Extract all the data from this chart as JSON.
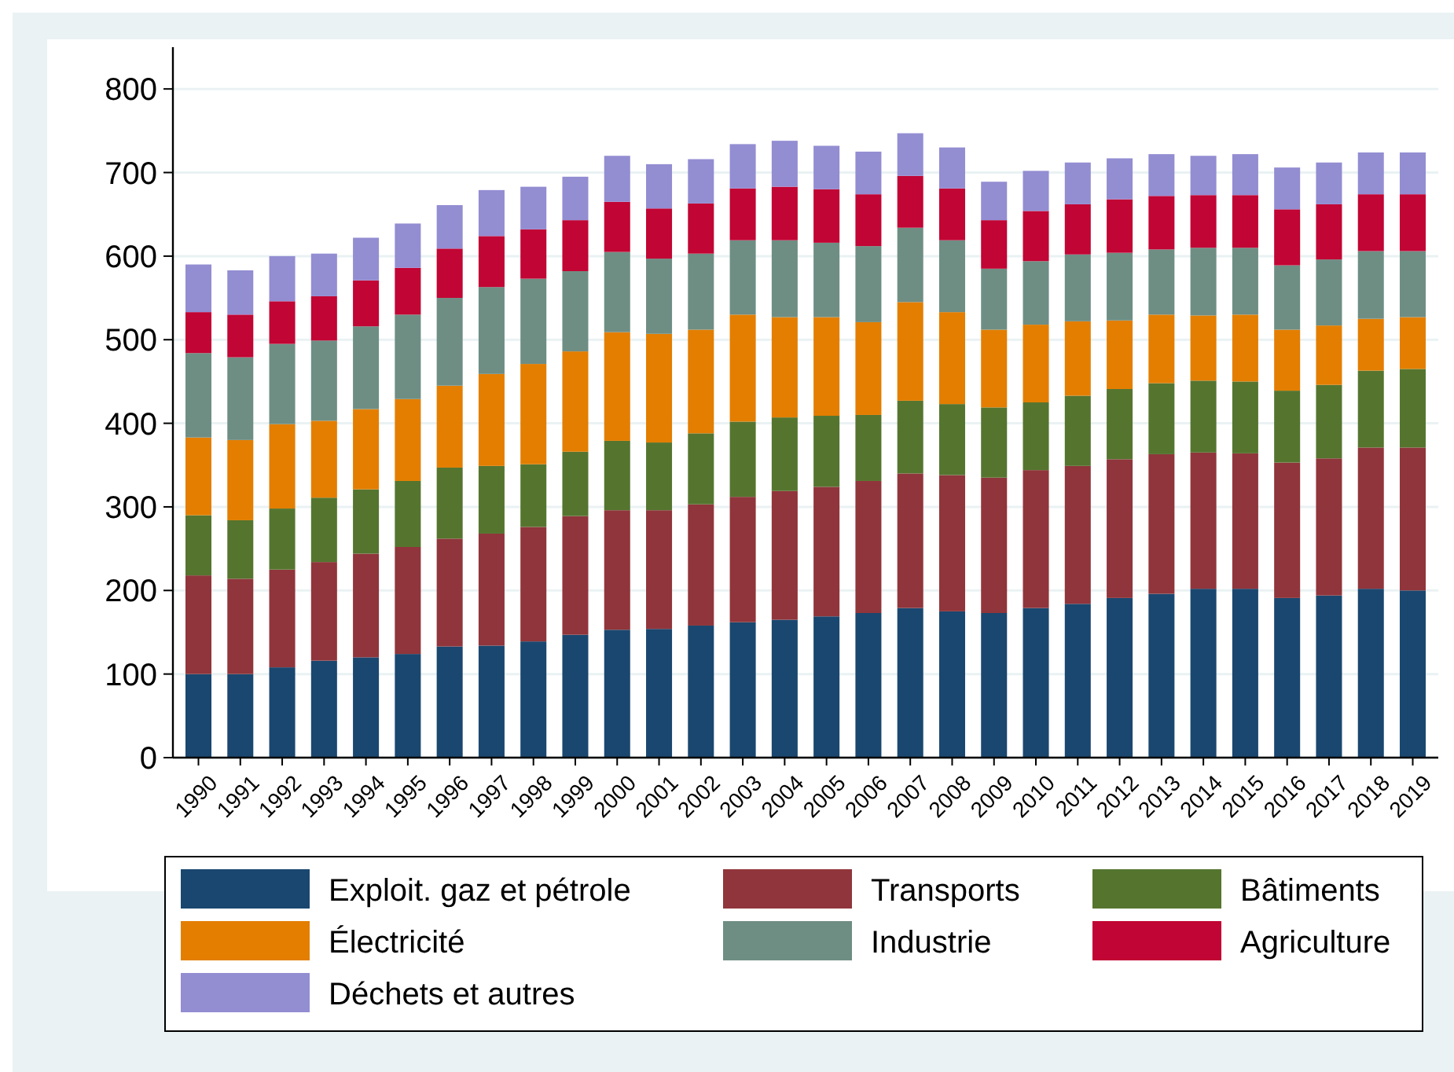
{
  "chart_data": {
    "type": "bar",
    "stacked": true,
    "grid": "y",
    "legend": "bottom",
    "categories": [
      "1990",
      "1991",
      "1992",
      "1993",
      "1994",
      "1995",
      "1996",
      "1997",
      "1998",
      "1999",
      "2000",
      "2001",
      "2002",
      "2003",
      "2004",
      "2005",
      "2006",
      "2007",
      "2008",
      "2009",
      "2010",
      "2011",
      "2012",
      "2013",
      "2014",
      "2015",
      "2016",
      "2017",
      "2018",
      "2019"
    ],
    "ylim": [
      0,
      850
    ],
    "yticks": [
      0,
      100,
      200,
      300,
      400,
      500,
      600,
      700,
      800
    ],
    "series": [
      {
        "name": "Exploit. gaz et pétrole",
        "color": "#1a476f",
        "values": [
          100,
          100,
          108,
          116,
          120,
          124,
          133,
          134,
          139,
          147,
          153,
          154,
          158,
          162,
          165,
          169,
          173,
          179,
          175,
          173,
          179,
          184,
          191,
          196,
          202,
          202,
          191,
          194,
          202,
          200
        ]
      },
      {
        "name": "Transports",
        "color": "#90353b",
        "values": [
          118,
          114,
          117,
          118,
          124,
          128,
          129,
          134,
          137,
          142,
          143,
          142,
          145,
          150,
          154,
          155,
          158,
          161,
          163,
          162,
          165,
          165,
          166,
          167,
          163,
          162,
          162,
          164,
          169,
          171
        ]
      },
      {
        "name": "Bâtiments",
        "color": "#55752f",
        "values": [
          72,
          70,
          73,
          77,
          77,
          79,
          85,
          81,
          75,
          77,
          83,
          81,
          85,
          90,
          88,
          85,
          79,
          87,
          85,
          84,
          81,
          84,
          84,
          85,
          86,
          86,
          86,
          88,
          92,
          94
        ]
      },
      {
        "name": "Électricité",
        "color": "#e37e00",
        "values": [
          93,
          96,
          101,
          92,
          96,
          98,
          98,
          110,
          120,
          120,
          130,
          130,
          124,
          128,
          120,
          118,
          111,
          118,
          110,
          93,
          93,
          89,
          82,
          82,
          78,
          80,
          73,
          71,
          62,
          62
        ]
      },
      {
        "name": "Industrie",
        "color": "#6e8e84",
        "values": [
          101,
          99,
          96,
          96,
          99,
          101,
          105,
          104,
          102,
          96,
          96,
          90,
          91,
          89,
          92,
          89,
          91,
          89,
          86,
          73,
          76,
          80,
          81,
          78,
          81,
          80,
          77,
          79,
          81,
          79
        ]
      },
      {
        "name": "Agriculture",
        "color": "#c10534",
        "values": [
          49,
          51,
          51,
          53,
          55,
          56,
          59,
          61,
          59,
          61,
          60,
          60,
          60,
          62,
          64,
          64,
          62,
          62,
          62,
          58,
          60,
          60,
          64,
          64,
          63,
          63,
          67,
          66,
          68,
          68
        ]
      },
      {
        "name": "Déchets et autres",
        "color": "#938dd2",
        "values": [
          57,
          53,
          54,
          51,
          51,
          53,
          52,
          55,
          51,
          52,
          55,
          53,
          53,
          53,
          55,
          52,
          51,
          51,
          49,
          46,
          48,
          50,
          49,
          50,
          47,
          49,
          50,
          50,
          50,
          50
        ]
      }
    ]
  }
}
